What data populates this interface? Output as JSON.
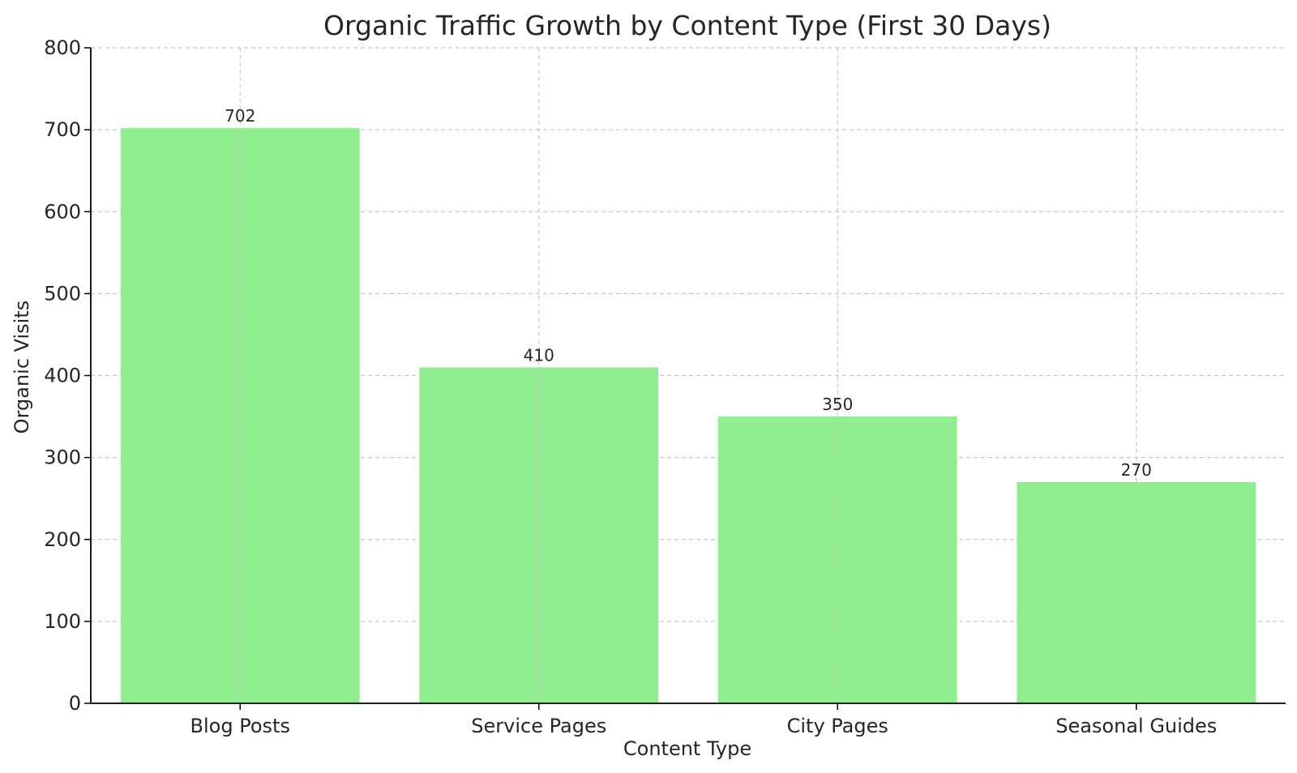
{
  "chart_data": {
    "type": "bar",
    "title": "Organic Traffic Growth by Content Type (First 30 Days)",
    "xlabel": "Content Type",
    "ylabel": "Organic Visits",
    "categories": [
      "Blog Posts",
      "Service Pages",
      "City Pages",
      "Seasonal Guides"
    ],
    "values": [
      702,
      410,
      350,
      270
    ],
    "ylim": [
      0,
      800
    ],
    "yticks": [
      0,
      100,
      200,
      300,
      400,
      500,
      600,
      700,
      800
    ],
    "grid": true,
    "bar_color": "#90ee90",
    "show_data_labels": true
  }
}
